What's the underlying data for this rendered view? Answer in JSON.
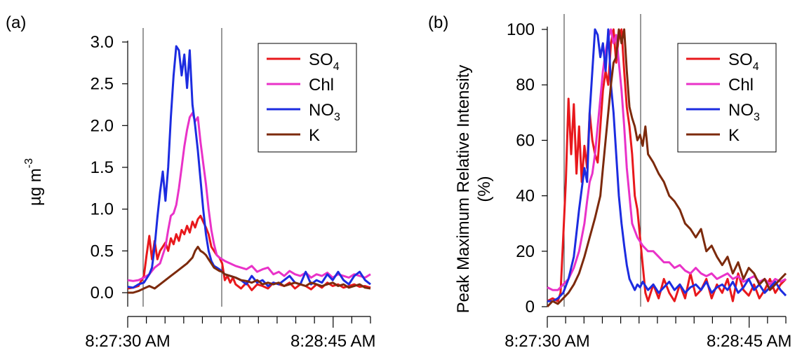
{
  "chart_data": [
    {
      "type": "line",
      "panel_label": "(a)",
      "title": "",
      "xlabel": "",
      "ylabel": {
        "base": "µg m",
        "sup": "-3"
      },
      "x_tick_labels": [
        "8:27:30 AM",
        "8:28:45 AM"
      ],
      "y_ticks": [
        0.0,
        0.5,
        1.0,
        1.5,
        2.0,
        2.5,
        3.0
      ],
      "y_tick_labels": [
        "0.0",
        "0.5",
        "1.0",
        "1.5",
        "2.0",
        "2.5",
        "3.0"
      ],
      "x_range_seconds": [
        0,
        90
      ],
      "ylim": [
        -0.1,
        3.15
      ],
      "vertical_markers_seconds": [
        6,
        35
      ],
      "legend": {
        "position": "top-right",
        "boxed": true
      },
      "x_unit_note": "seconds after 8:27:30 AM",
      "series": [
        {
          "name": {
            "base": "SO",
            "sub": "4"
          },
          "color": "#e8181c",
          "x": [
            0,
            2,
            4,
            6,
            7,
            8,
            9,
            10,
            11,
            12,
            13,
            14,
            15,
            16,
            17,
            18,
            19,
            20,
            21,
            22,
            23,
            24,
            25,
            26,
            27,
            28,
            29,
            30,
            31,
            32,
            33,
            34,
            35,
            36,
            37,
            38,
            39,
            40,
            42,
            44,
            46,
            48,
            50,
            52,
            54,
            56,
            58,
            60,
            62,
            64,
            66,
            68,
            70,
            72,
            74,
            76,
            78,
            80,
            82,
            84,
            86,
            88,
            90
          ],
          "y": [
            0.05,
            0.06,
            0.08,
            0.2,
            0.45,
            0.68,
            0.4,
            0.62,
            0.4,
            0.5,
            0.55,
            0.6,
            0.5,
            0.65,
            0.58,
            0.7,
            0.62,
            0.75,
            0.7,
            0.8,
            0.72,
            0.85,
            0.78,
            0.88,
            0.92,
            0.85,
            0.78,
            0.7,
            0.55,
            0.5,
            0.45,
            0.42,
            0.35,
            0.15,
            0.2,
            0.12,
            0.18,
            0.1,
            0.05,
            0.12,
            0.03,
            0.1,
            0.08,
            0.05,
            0.12,
            0.1,
            0.08,
            0.12,
            0.05,
            0.1,
            0.08,
            0.04,
            0.1,
            0.06,
            0.12,
            0.08,
            0.1,
            0.06,
            0.08,
            0.1,
            0.07,
            0.08,
            0.06
          ]
        },
        {
          "name": {
            "base": "Chl"
          },
          "color": "#e932c8",
          "x": [
            0,
            2,
            4,
            6,
            8,
            10,
            12,
            14,
            15,
            16,
            17,
            18,
            19,
            20,
            21,
            22,
            23,
            24,
            25,
            26,
            27,
            28,
            29,
            30,
            31,
            32,
            33,
            34,
            35,
            36,
            38,
            40,
            42,
            44,
            46,
            48,
            50,
            52,
            54,
            56,
            58,
            60,
            62,
            64,
            66,
            68,
            70,
            72,
            74,
            76,
            78,
            80,
            82,
            84,
            86,
            88,
            90
          ],
          "y": [
            0.15,
            0.14,
            0.15,
            0.18,
            0.22,
            0.3,
            0.35,
            0.55,
            0.75,
            0.92,
            0.95,
            1.05,
            1.25,
            1.5,
            1.75,
            1.95,
            2.1,
            2.15,
            2.05,
            2.1,
            1.8,
            1.55,
            1.3,
            1.0,
            0.75,
            0.58,
            0.45,
            0.42,
            0.4,
            0.38,
            0.35,
            0.32,
            0.3,
            0.28,
            0.32,
            0.25,
            0.28,
            0.3,
            0.22,
            0.25,
            0.2,
            0.26,
            0.22,
            0.2,
            0.24,
            0.18,
            0.22,
            0.2,
            0.24,
            0.18,
            0.22,
            0.2,
            0.18,
            0.22,
            0.2,
            0.18,
            0.22
          ]
        },
        {
          "name": {
            "base": "NO",
            "sub": "3"
          },
          "color": "#1c2ce0",
          "x": [
            0,
            2,
            4,
            6,
            8,
            9,
            10,
            11,
            12,
            13,
            14,
            15,
            16,
            17,
            18,
            19,
            20,
            21,
            22,
            23,
            24,
            25,
            26,
            27,
            28,
            29,
            30,
            31,
            32,
            33,
            34,
            35,
            36,
            38,
            40,
            42,
            44,
            46,
            48,
            50,
            52,
            54,
            56,
            58,
            60,
            62,
            64,
            66,
            68,
            70,
            72,
            74,
            76,
            78,
            80,
            82,
            84,
            86,
            88,
            90
          ],
          "y": [
            0.07,
            0.06,
            0.1,
            0.12,
            0.22,
            0.3,
            0.55,
            0.9,
            1.2,
            1.45,
            1.1,
            1.5,
            2.1,
            2.6,
            2.95,
            2.9,
            2.6,
            2.85,
            2.45,
            2.9,
            2.25,
            2.0,
            1.7,
            1.35,
            1.0,
            0.7,
            0.5,
            0.38,
            0.32,
            0.3,
            0.28,
            0.25,
            0.22,
            0.2,
            0.18,
            0.15,
            0.1,
            0.2,
            0.12,
            0.15,
            0.08,
            0.12,
            0.1,
            0.15,
            0.2,
            0.12,
            0.1,
            0.25,
            0.1,
            0.15,
            0.12,
            0.22,
            0.15,
            0.25,
            0.15,
            0.1,
            0.2,
            0.25,
            0.15,
            0.1
          ]
        },
        {
          "name": {
            "base": "K"
          },
          "color": "#7c2a0c",
          "x": [
            0,
            2,
            4,
            6,
            8,
            10,
            12,
            14,
            16,
            18,
            20,
            22,
            24,
            25,
            26,
            27,
            28,
            29,
            30,
            31,
            32,
            33,
            34,
            35,
            36,
            38,
            40,
            42,
            44,
            46,
            48,
            50,
            52,
            54,
            56,
            58,
            60,
            62,
            64,
            66,
            68,
            70,
            72,
            74,
            76,
            78,
            80,
            82,
            84,
            86,
            88,
            90
          ],
          "y": [
            0.0,
            0.0,
            0.02,
            0.05,
            0.08,
            0.05,
            0.1,
            0.15,
            0.2,
            0.25,
            0.3,
            0.35,
            0.42,
            0.5,
            0.55,
            0.5,
            0.48,
            0.45,
            0.4,
            0.35,
            0.3,
            0.28,
            0.26,
            0.25,
            0.22,
            0.2,
            0.18,
            0.15,
            0.14,
            0.12,
            0.15,
            0.1,
            0.12,
            0.1,
            0.12,
            0.08,
            0.1,
            0.12,
            0.1,
            0.08,
            0.12,
            0.1,
            0.08,
            0.1,
            0.12,
            0.08,
            0.1,
            0.06,
            0.08,
            0.1,
            0.06,
            0.05
          ]
        }
      ]
    },
    {
      "type": "line",
      "panel_label": "(b)",
      "title": "",
      "xlabel": "",
      "ylabel": "Peak Maximum Relative Intensity (%)",
      "x_tick_labels": [
        "8:27:30 AM",
        "8:28:45 AM"
      ],
      "y_ticks": [
        0,
        20,
        40,
        60,
        80,
        100
      ],
      "y_tick_labels": [
        "0",
        "20",
        "40",
        "60",
        "80",
        "100"
      ],
      "x_range_seconds": [
        0,
        90
      ],
      "ylim": [
        0,
        101
      ],
      "vertical_markers_seconds": [
        6,
        35
      ],
      "legend": {
        "position": "top-right",
        "boxed": true
      },
      "x_unit_note": "seconds after 8:27:30 AM",
      "series": [
        {
          "name": {
            "base": "SO",
            "sub": "4"
          },
          "color": "#e8181c",
          "x": [
            0,
            2,
            4,
            5,
            6,
            7,
            8,
            9,
            10,
            11,
            12,
            13,
            14,
            15,
            16,
            17,
            18,
            19,
            20,
            21,
            22,
            23,
            24,
            25,
            26,
            27,
            28,
            29,
            30,
            31,
            32,
            33,
            34,
            35,
            36,
            37,
            38,
            40,
            42,
            44,
            46,
            48,
            50,
            52,
            54,
            56,
            58,
            60,
            62,
            64,
            66,
            68,
            70,
            72,
            74,
            76,
            78,
            80,
            82,
            84,
            86,
            88,
            90
          ],
          "y": [
            2,
            3,
            2,
            5,
            25,
            45,
            75,
            55,
            73,
            48,
            65,
            45,
            58,
            50,
            70,
            60,
            55,
            52,
            65,
            78,
            85,
            80,
            95,
            100,
            88,
            98,
            100,
            85,
            72,
            65,
            55,
            40,
            35,
            25,
            15,
            5,
            2,
            8,
            3,
            10,
            5,
            2,
            8,
            3,
            12,
            4,
            6,
            10,
            3,
            8,
            5,
            10,
            2,
            12,
            6,
            4,
            8,
            3,
            6,
            10,
            5,
            8,
            10
          ]
        },
        {
          "name": {
            "base": "Chl"
          },
          "color": "#e932c8",
          "x": [
            0,
            2,
            4,
            6,
            8,
            10,
            12,
            14,
            15,
            16,
            17,
            18,
            19,
            20,
            21,
            22,
            23,
            24,
            25,
            26,
            27,
            28,
            29,
            30,
            31,
            32,
            34,
            36,
            38,
            40,
            42,
            44,
            46,
            48,
            50,
            52,
            54,
            56,
            58,
            60,
            62,
            64,
            66,
            68,
            70,
            72,
            74,
            76,
            78,
            80,
            82,
            84,
            86,
            88,
            90
          ],
          "y": [
            7,
            6,
            6,
            8,
            10,
            14,
            20,
            30,
            38,
            45,
            48,
            55,
            65,
            75,
            85,
            92,
            97,
            100,
            95,
            98,
            88,
            78,
            65,
            50,
            40,
            30,
            25,
            22,
            20,
            20,
            18,
            16,
            16,
            14,
            15,
            13,
            12,
            14,
            12,
            11,
            12,
            10,
            11,
            12,
            10,
            11,
            9,
            10,
            11,
            9,
            10,
            8,
            10,
            9,
            10
          ]
        },
        {
          "name": {
            "base": "NO",
            "sub": "3"
          },
          "color": "#1c2ce0",
          "x": [
            0,
            2,
            4,
            6,
            8,
            10,
            12,
            14,
            15,
            16,
            17,
            18,
            19,
            20,
            21,
            22,
            23,
            24,
            25,
            26,
            27,
            28,
            29,
            30,
            31,
            32,
            33,
            34,
            35,
            36,
            38,
            40,
            42,
            44,
            46,
            48,
            50,
            52,
            54,
            56,
            58,
            60,
            62,
            64,
            66,
            68,
            70,
            72,
            74,
            76,
            78,
            80,
            82,
            84,
            86,
            88,
            90
          ],
          "y": [
            2,
            2,
            3,
            5,
            10,
            18,
            35,
            50,
            45,
            70,
            85,
            100,
            98,
            90,
            95,
            85,
            100,
            80,
            70,
            55,
            40,
            30,
            22,
            15,
            10,
            8,
            6,
            8,
            7,
            9,
            6,
            8,
            5,
            7,
            9,
            6,
            8,
            5,
            7,
            8,
            6,
            9,
            5,
            7,
            8,
            6,
            9,
            5,
            7,
            10,
            6,
            8,
            5,
            7,
            9,
            6,
            4
          ]
        },
        {
          "name": {
            "base": "K"
          },
          "color": "#7c2a0c",
          "x": [
            0,
            2,
            4,
            6,
            8,
            10,
            12,
            14,
            16,
            18,
            20,
            21,
            22,
            23,
            24,
            25,
            26,
            27,
            28,
            29,
            30,
            31,
            32,
            33,
            34,
            35,
            36,
            37,
            38,
            40,
            42,
            44,
            46,
            48,
            50,
            52,
            54,
            56,
            58,
            60,
            62,
            64,
            66,
            68,
            70,
            72,
            74,
            76,
            78,
            80,
            82,
            84,
            86,
            88,
            90
          ],
          "y": [
            0,
            2,
            1,
            3,
            5,
            8,
            12,
            18,
            25,
            32,
            40,
            50,
            60,
            70,
            80,
            88,
            90,
            100,
            95,
            100,
            85,
            72,
            68,
            65,
            60,
            62,
            58,
            65,
            55,
            52,
            48,
            45,
            40,
            38,
            35,
            30,
            28,
            25,
            28,
            20,
            22,
            18,
            15,
            18,
            12,
            16,
            10,
            14,
            12,
            8,
            10,
            6,
            8,
            10,
            12
          ]
        }
      ]
    }
  ]
}
